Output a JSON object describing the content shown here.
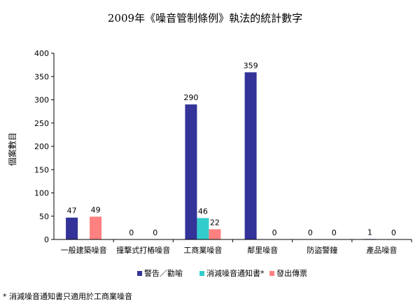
{
  "chart_data": {
    "type": "bar",
    "title": "2009年《噪音管制條例》執法的統計數字",
    "xlabel": "",
    "ylabel": "個案數目",
    "ylim": [
      0,
      400
    ],
    "yticks": [
      0,
      50,
      100,
      150,
      200,
      250,
      300,
      350,
      400
    ],
    "grid": false,
    "legend_position": "bottom",
    "categories": [
      "一般建築噪音",
      "撞擊式打樁噪音",
      "工商業噪音",
      "鄰里噪音",
      "防盜警鐘",
      "產品噪音"
    ],
    "series": [
      {
        "name": "警告／勸喻",
        "color": "#333399",
        "values": [
          47,
          0,
          290,
          359,
          0,
          1
        ]
      },
      {
        "name": "消減噪音通知書*",
        "color": "#33CCCC",
        "values": [
          null,
          null,
          46,
          null,
          null,
          null
        ]
      },
      {
        "name": "發出傳票",
        "color": "#FF8080",
        "values": [
          49,
          0,
          22,
          0,
          0,
          0
        ]
      }
    ],
    "footnote": "* 消減噪音通知書只適用於工商業噪音"
  }
}
